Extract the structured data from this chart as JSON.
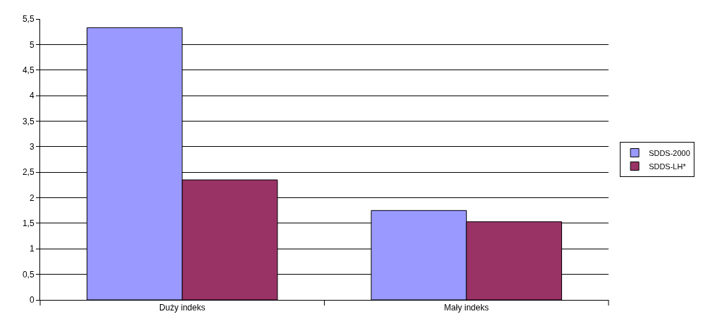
{
  "chart_data": {
    "type": "bar",
    "categories": [
      "Duży indeks",
      "Mały indeks"
    ],
    "series": [
      {
        "name": "SDDS-2000",
        "color": "#9999ff",
        "values": [
          5.33,
          1.75
        ]
      },
      {
        "name": "SDDS-LH*",
        "color": "#993366",
        "values": [
          2.35,
          1.53
        ]
      }
    ],
    "ylim": [
      0,
      5.5
    ],
    "yticks": [
      0,
      {
        "value": 0.5,
        "label": "0,5"
      },
      1,
      {
        "value": 1.5,
        "label": "1,5"
      },
      2,
      {
        "value": 2.5,
        "label": "2,5"
      },
      3,
      {
        "value": 3.5,
        "label": "3,5"
      },
      4,
      {
        "value": 4.5,
        "label": "4,5"
      },
      5,
      {
        "value": 5.5,
        "label": "5,5"
      }
    ],
    "grid": "y",
    "legend": "right"
  }
}
